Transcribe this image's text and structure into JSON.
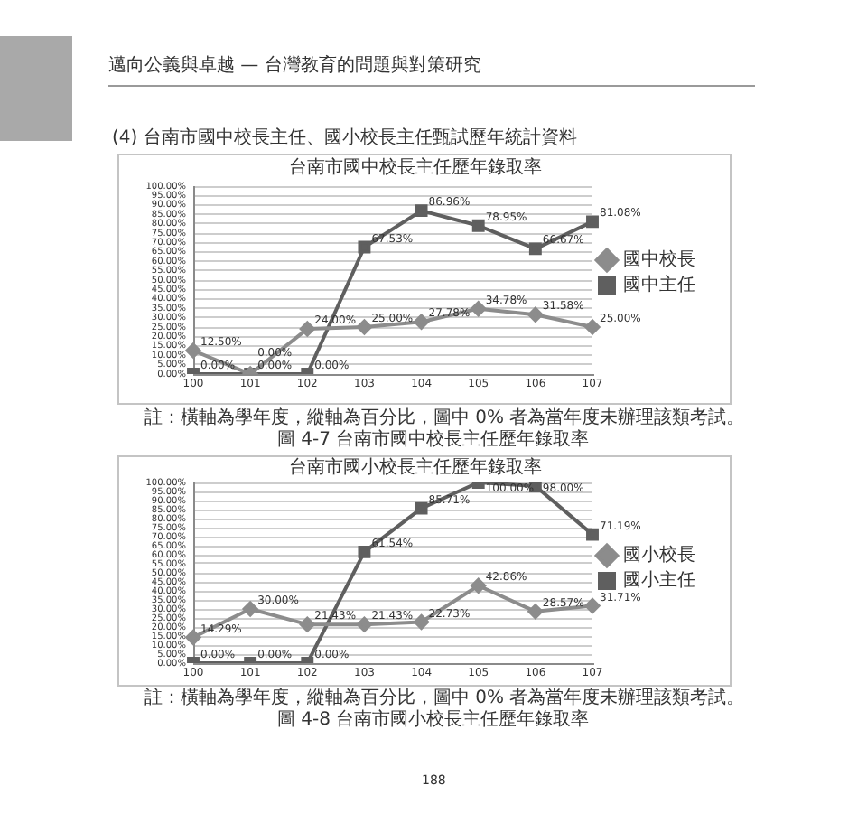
{
  "chart_data": [
    {
      "type": "line",
      "title": "台南市國中校長主任歷年錄取率",
      "categories": [
        "100",
        "101",
        "102",
        "103",
        "104",
        "105",
        "106",
        "107"
      ],
      "series": [
        {
          "name": "國中校長",
          "color": "#8c8c8c",
          "marker": "diamond",
          "values": [
            12.5,
            0,
            24,
            25,
            27.78,
            34.78,
            31.58,
            25
          ],
          "value_labels": [
            "12.50%",
            "0.00%",
            "24.00%",
            "25.00%",
            "27.78%",
            "34.78%",
            "31.58%",
            "25.00%"
          ]
        },
        {
          "name": "國中主任",
          "color": "#5f5f5f",
          "marker": "square",
          "values": [
            0,
            0,
            0,
            67.53,
            86.96,
            78.95,
            66.67,
            81.08
          ],
          "value_labels": [
            "0.00%",
            "0.00%",
            "0.00%",
            "67.53%",
            "86.96%",
            "78.95%",
            "66.67%",
            "81.08%"
          ]
        }
      ],
      "ylim": [
        0,
        100
      ],
      "yticks": [
        {
          "value": 0,
          "label": "0.00%"
        },
        {
          "value": 5,
          "label": "5.00%"
        },
        {
          "value": 10,
          "label": "10.00%"
        },
        {
          "value": 15,
          "label": "15.00%"
        },
        {
          "value": 20,
          "label": "20.00%"
        },
        {
          "value": 25,
          "label": "25.00%"
        },
        {
          "value": 30,
          "label": "30.00%"
        },
        {
          "value": 35,
          "label": "35.00%"
        },
        {
          "value": 40,
          "label": "40.00%"
        },
        {
          "value": 45,
          "label": "45.00%"
        },
        {
          "value": 50,
          "label": "50.00%"
        },
        {
          "value": 55,
          "label": "55.00%"
        },
        {
          "value": 60,
          "label": "60.00%"
        },
        {
          "value": 65,
          "label": "65.00%"
        },
        {
          "value": 70,
          "label": "70.00%"
        },
        {
          "value": 75,
          "label": "75.00%"
        },
        {
          "value": 80,
          "label": "80.00%"
        },
        {
          "value": 85,
          "label": "85.00%"
        },
        {
          "value": 90,
          "label": "90.00%"
        },
        {
          "value": 95,
          "label": "95.00%"
        },
        {
          "value": 100,
          "label": "100.00%"
        }
      ],
      "grid": "y",
      "legend": "right",
      "annotations": [
        "邁向公義與卓越 — 台灣教育的問題與對策研究",
        "(4) 台南市國中校長主任、國小校長主任甄試歷年統計資料",
        "註：橫軸為學年度，縱軸為百分比，圖中 0% 者為當年度未辦理該類考試。",
        "圖 4-7 台南市國中校長主任歷年錄取率"
      ]
    },
    {
      "type": "line",
      "title": "台南市國小校長主任歷年錄取率",
      "categories": [
        "100",
        "101",
        "102",
        "103",
        "104",
        "105",
        "106",
        "107"
      ],
      "series": [
        {
          "name": "國小校長",
          "color": "#8c8c8c",
          "marker": "diamond",
          "values": [
            14.29,
            30,
            21.43,
            21.43,
            22.73,
            42.86,
            28.57,
            31.71
          ],
          "value_labels": [
            "14.29%",
            "30.00%",
            "21.43%",
            "21.43%",
            "22.73%",
            "42.86%",
            "28.57%",
            "31.71%"
          ]
        },
        {
          "name": "國小主任",
          "color": "#5f5f5f",
          "marker": "square",
          "values": [
            0,
            0,
            0,
            61.54,
            85.71,
            100,
            98,
            71.19
          ],
          "value_labels": [
            "0.00%",
            "0.00%",
            "0.00%",
            "61.54%",
            "85.71%",
            "100.00%",
            "98.00%",
            "71.19%"
          ]
        }
      ],
      "ylim": [
        0,
        100
      ],
      "yticks": [
        {
          "value": 0,
          "label": "0.00%"
        },
        {
          "value": 5,
          "label": "5.00%"
        },
        {
          "value": 10,
          "label": "10.00%"
        },
        {
          "value": 15,
          "label": "15.00%"
        },
        {
          "value": 20,
          "label": "20.00%"
        },
        {
          "value": 25,
          "label": "25.00%"
        },
        {
          "value": 30,
          "label": "30.00%"
        },
        {
          "value": 35,
          "label": "35.00%"
        },
        {
          "value": 40,
          "label": "40.00%"
        },
        {
          "value": 45,
          "label": "45.00%"
        },
        {
          "value": 50,
          "label": "50.00%"
        },
        {
          "value": 55,
          "label": "55.00%"
        },
        {
          "value": 60,
          "label": "60.00%"
        },
        {
          "value": 65,
          "label": "65.00%"
        },
        {
          "value": 70,
          "label": "70.00%"
        },
        {
          "value": 75,
          "label": "75.00%"
        },
        {
          "value": 80,
          "label": "80.00%"
        },
        {
          "value": 85,
          "label": "85.00%"
        },
        {
          "value": 90,
          "label": "90.00%"
        },
        {
          "value": 95,
          "label": "95.00%"
        },
        {
          "value": 100,
          "label": "100.00%"
        }
      ],
      "grid": "y",
      "legend": "right",
      "annotations": [
        "註：橫軸為學年度，縱軸為百分比，圖中 0% 者為當年度未辦理該類考試。",
        "圖 4-8 台南市國小校長主任歷年錄取率",
        "188"
      ]
    }
  ]
}
